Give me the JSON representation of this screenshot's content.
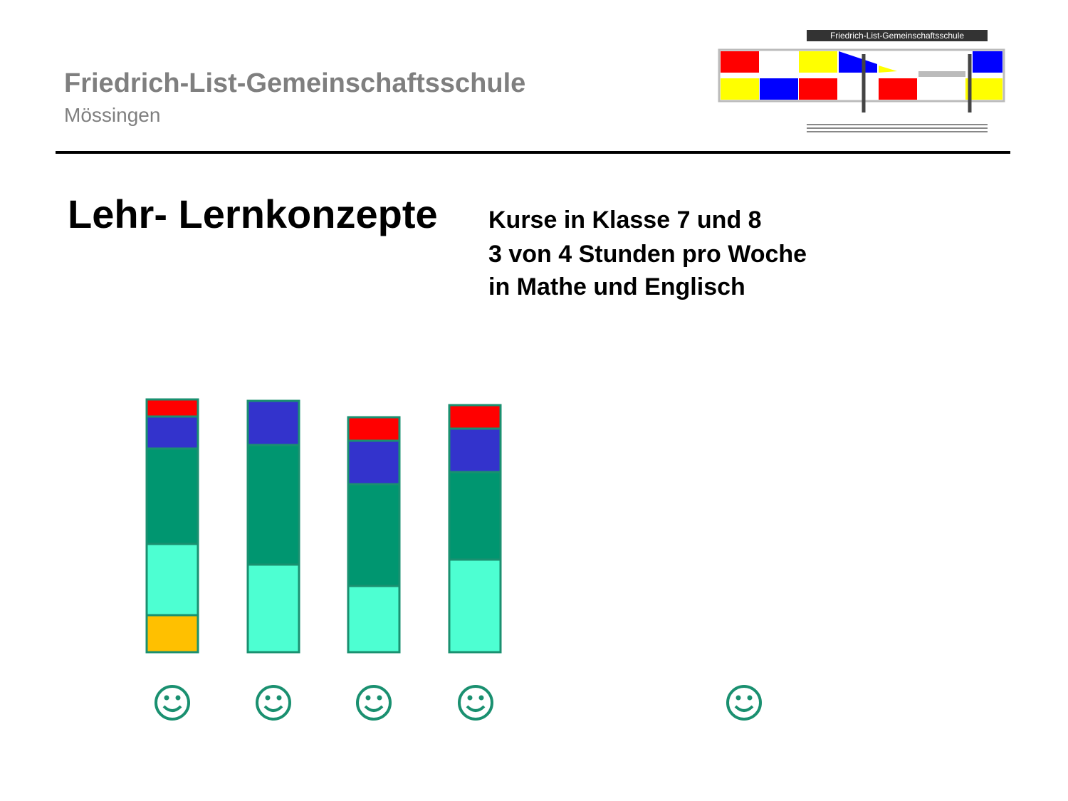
{
  "header": {
    "title": "Friedrich-List-Gemeinschaftsschule",
    "subtitle": "Mössingen"
  },
  "logo": {
    "label": "Friedrich-List-Gemeinschaftsschule"
  },
  "slide": {
    "title": "Lehr- Lernkonzepte",
    "lines": [
      "Kurse in Klasse 7 und 8",
      "3 von 4 Stunden pro Woche",
      "in Mathe und Englisch"
    ]
  }
}
